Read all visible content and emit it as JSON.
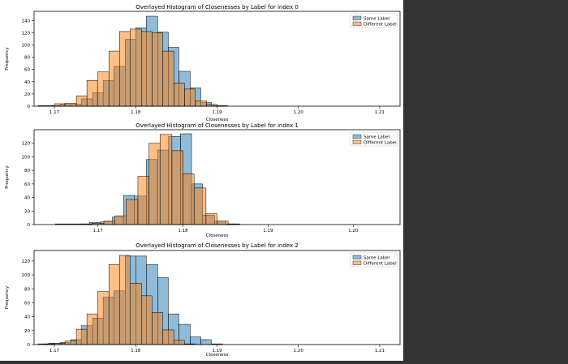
{
  "chart_data": [
    {
      "type": "histogram",
      "title": "Overlayed Histogram of Closenesses by Label for index 0",
      "xlabel": "Closeness",
      "ylabel": "Frequency",
      "xlim": [
        1.1675,
        1.2125
      ],
      "ylim": [
        0,
        155
      ],
      "xticks": [
        1.17,
        1.18,
        1.19,
        1.2,
        1.21
      ],
      "xtick_labels": [
        "1.17",
        "1.18",
        "1.19",
        "1.20",
        "1.21"
      ],
      "yticks": [
        0,
        20,
        40,
        60,
        80,
        100,
        120,
        140
      ],
      "yticklabels": [
        "0",
        "20",
        "40",
        "60",
        "80",
        "100",
        "120",
        "140"
      ],
      "legend_position": "top-right",
      "series": [
        {
          "name": "Same Label",
          "color": "#1f77b4",
          "edges": [
            1.168,
            1.1693,
            1.1707,
            1.172,
            1.1733,
            1.1747,
            1.176,
            1.1773,
            1.1787,
            1.18,
            1.1813,
            1.1827,
            1.184,
            1.1853,
            1.1867,
            1.188,
            1.1893,
            1.1907,
            1.192,
            1.1933,
            1.1947
          ],
          "counts": [
            1,
            1,
            3,
            3,
            12,
            22,
            42,
            65,
            109,
            128,
            147,
            121,
            96,
            57,
            30,
            6,
            1,
            0,
            0,
            0
          ]
        },
        {
          "name": "Different Label",
          "color": "#ff7f0e",
          "edges": [
            1.17,
            1.1713,
            1.1727,
            1.174,
            1.1753,
            1.1767,
            1.178,
            1.1793,
            1.1807,
            1.182,
            1.1833,
            1.1847,
            1.186,
            1.1873,
            1.1887,
            1.19,
            1.1913,
            1.1927,
            1.194,
            1.1953,
            1.1967
          ],
          "counts": [
            4,
            5,
            17,
            42,
            56,
            90,
            122,
            126,
            122,
            120,
            90,
            38,
            28,
            9,
            3,
            1,
            0,
            0,
            0,
            0
          ]
        }
      ]
    },
    {
      "type": "histogram",
      "title": "Overlayed Histogram of Closenesses by Label for index 1",
      "xlabel": "Closeness",
      "ylabel": "Frequency",
      "xlim": [
        1.1625,
        1.2055
      ],
      "ylim": [
        0,
        140
      ],
      "xticks": [
        1.17,
        1.18,
        1.19,
        1.2
      ],
      "xtick_labels": [
        "1.17",
        "1.18",
        "1.19",
        "1.20"
      ],
      "yticks": [
        0,
        20,
        40,
        60,
        80,
        100,
        120
      ],
      "yticklabels": [
        "0",
        "20",
        "40",
        "60",
        "80",
        "100",
        "120"
      ],
      "legend_position": "top-right",
      "series": [
        {
          "name": "Same Label",
          "color": "#1f77b4",
          "edges": [
            1.165,
            1.1663,
            1.1677,
            1.169,
            1.1703,
            1.1717,
            1.173,
            1.1743,
            1.1757,
            1.177,
            1.1783,
            1.1797,
            1.181,
            1.1823,
            1.1837,
            1.185,
            1.1863,
            1.1877,
            1.189,
            1.1903,
            1.1917
          ],
          "counts": [
            1,
            1,
            1,
            3,
            4,
            11,
            43,
            42,
            96,
            110,
            130,
            134,
            60,
            14,
            5,
            1,
            0,
            0,
            0,
            0
          ]
        },
        {
          "name": "Different Label",
          "color": "#ff7f0e",
          "edges": [
            1.168,
            1.1693,
            1.1707,
            1.172,
            1.1733,
            1.1747,
            1.176,
            1.1773,
            1.1787,
            1.18,
            1.1813,
            1.1827,
            1.184,
            1.1853,
            1.1867,
            1.188,
            1.1893,
            1.1907,
            1.192,
            1.1933,
            1.1947
          ],
          "counts": [
            1,
            2,
            5,
            13,
            37,
            71,
            120,
            133,
            109,
            75,
            54,
            16,
            5,
            1,
            0,
            0,
            0,
            0,
            0,
            0
          ]
        }
      ]
    },
    {
      "type": "histogram",
      "title": "Overlayed Histogram of Closenesses by Label for index 2",
      "xlabel": "Closeness",
      "ylabel": "Frequency",
      "xlim": [
        1.1675,
        1.2125
      ],
      "ylim": [
        0,
        135
      ],
      "xticks": [
        1.17,
        1.18,
        1.19,
        1.2,
        1.21
      ],
      "xtick_labels": [
        "1.17",
        "1.18",
        "1.19",
        "1.20",
        "1.21"
      ],
      "yticks": [
        0,
        20,
        40,
        60,
        80,
        100,
        120
      ],
      "yticklabels": [
        "0",
        "20",
        "40",
        "60",
        "80",
        "100",
        "120"
      ],
      "legend_position": "top-right",
      "series": [
        {
          "name": "Same Label",
          "color": "#1f77b4",
          "edges": [
            1.168,
            1.1693,
            1.1707,
            1.172,
            1.1733,
            1.1747,
            1.176,
            1.1773,
            1.1787,
            1.18,
            1.1813,
            1.1827,
            1.184,
            1.1853,
            1.1867,
            1.188,
            1.1893,
            1.1907,
            1.192,
            1.1933,
            1.1947
          ],
          "counts": [
            1,
            2,
            3,
            7,
            27,
            38,
            68,
            77,
            127,
            127,
            115,
            96,
            44,
            29,
            11,
            7,
            1,
            0,
            0,
            0
          ]
        },
        {
          "name": "Different Label",
          "color": "#ff7f0e",
          "edges": [
            1.1687,
            1.17,
            1.1713,
            1.1727,
            1.174,
            1.1753,
            1.1767,
            1.178,
            1.1793,
            1.1807,
            1.182,
            1.1833,
            1.1847,
            1.186,
            1.1873,
            1.1887,
            1.19,
            1.1913,
            1.1927,
            1.194,
            1.1953
          ],
          "counts": [
            1,
            2,
            5,
            22,
            44,
            76,
            115,
            128,
            88,
            70,
            46,
            21,
            6,
            1,
            0,
            0,
            0,
            0,
            0,
            0
          ]
        }
      ]
    }
  ]
}
